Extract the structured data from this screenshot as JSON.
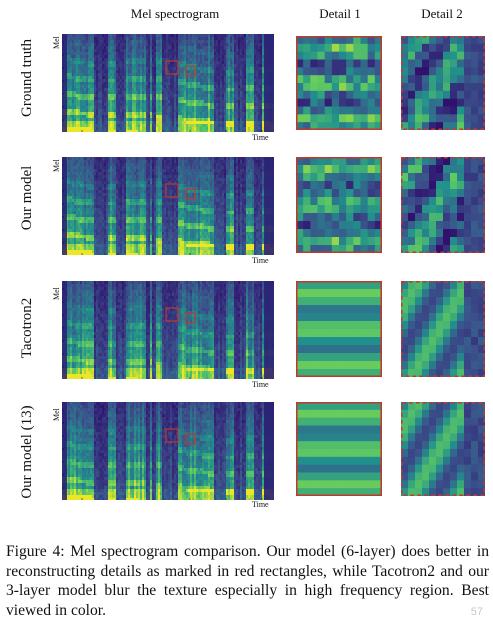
{
  "column_headers": {
    "mel": "Mel spectrogram",
    "detail1": "Detail 1",
    "detail2": "Detail 2"
  },
  "rows": [
    {
      "label": "Ground truth",
      "axis_mel": "Mel",
      "axis_time": "Time"
    },
    {
      "label": "Our model",
      "axis_mel": "Mel",
      "axis_time": "Time"
    },
    {
      "label": "Tacotron2",
      "axis_mel": "Mel",
      "axis_time": "Time"
    },
    {
      "label": "Our model (13)",
      "axis_mel": "Mel",
      "axis_time": "Time"
    }
  ],
  "caption": "Figure 4: Mel spectrogram comparison. Our model (6-layer) does better in reconstructing details as marked in red rectangles, while Tacotron2 and our 3-layer model blur the texture especially in high frequency region. Best viewed in color.",
  "watermark": "57",
  "colors": {
    "dark": "#2b1f73",
    "mid": "#21918c",
    "light": "#b5de2b",
    "highlight": "#c0392b"
  },
  "icons": [
    "spectrogram-image",
    "detail-crop-image"
  ]
}
